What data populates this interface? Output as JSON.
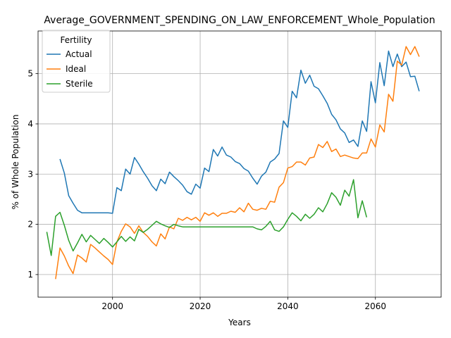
{
  "chart_data": {
    "type": "line",
    "title": "Average_GOVERNMENT_SPENDING_ON_LAW_ENFORCEMENT_Whole_Population",
    "xlabel": "Years",
    "ylabel": "% of Whole Population",
    "xlim": [
      1983,
      2075
    ],
    "ylim": [
      0.55,
      5.85
    ],
    "xticks": [
      2000,
      2020,
      2040,
      2060
    ],
    "yticks": [
      1,
      2,
      3,
      4,
      5
    ],
    "grid": true,
    "legend": {
      "title": "Fertility",
      "position": "top-left"
    },
    "series": [
      {
        "name": "Actual",
        "color": "#1f77b4",
        "x": [
          1988,
          1989,
          1990,
          1991,
          1992,
          1993,
          1994,
          1995,
          1996,
          1997,
          1998,
          1999,
          2000,
          2001,
          2002,
          2003,
          2004,
          2005,
          2006,
          2007,
          2008,
          2009,
          2010,
          2011,
          2012,
          2013,
          2014,
          2015,
          2016,
          2017,
          2018,
          2019,
          2020,
          2021,
          2022,
          2023,
          2024,
          2025,
          2026,
          2027,
          2028,
          2029,
          2030,
          2031,
          2032,
          2033,
          2034,
          2035,
          2036,
          2037,
          2038,
          2039,
          2040,
          2041,
          2042,
          2043,
          2044,
          2045,
          2046,
          2047,
          2048,
          2049,
          2050,
          2051,
          2052,
          2053,
          2054,
          2055,
          2056,
          2057,
          2058,
          2059,
          2060,
          2061,
          2062,
          2063,
          2064,
          2065,
          2066,
          2067,
          2068,
          2069,
          2070
        ],
        "y": [
          3.3,
          3.02,
          2.57,
          2.42,
          2.28,
          2.23,
          2.23,
          2.23,
          2.23,
          2.23,
          2.23,
          2.23,
          2.22,
          2.73,
          2.67,
          3.1,
          3.0,
          3.33,
          3.2,
          3.05,
          2.92,
          2.77,
          2.67,
          2.9,
          2.81,
          3.04,
          2.95,
          2.87,
          2.78,
          2.65,
          2.6,
          2.8,
          2.72,
          3.12,
          3.05,
          3.49,
          3.36,
          3.54,
          3.38,
          3.34,
          3.25,
          3.21,
          3.11,
          3.06,
          2.92,
          2.8,
          2.96,
          3.04,
          3.24,
          3.3,
          3.41,
          4.06,
          3.93,
          4.65,
          4.52,
          5.07,
          4.81,
          4.97,
          4.75,
          4.7,
          4.56,
          4.41,
          4.19,
          4.08,
          3.9,
          3.82,
          3.63,
          3.68,
          3.55,
          4.06,
          3.85,
          4.84,
          4.42,
          5.22,
          4.76,
          5.45,
          5.14,
          5.39,
          5.14,
          5.23,
          4.94,
          4.95,
          4.65
        ]
      },
      {
        "name": "Ideal",
        "color": "#ff7f0e",
        "x": [
          1987,
          1988,
          1989,
          1990,
          1991,
          1992,
          1993,
          1994,
          1995,
          1996,
          1997,
          1998,
          1999,
          2000,
          2001,
          2002,
          2003,
          2004,
          2005,
          2006,
          2007,
          2008,
          2009,
          2010,
          2011,
          2012,
          2013,
          2014,
          2015,
          2016,
          2017,
          2018,
          2019,
          2020,
          2021,
          2022,
          2023,
          2024,
          2025,
          2026,
          2027,
          2028,
          2029,
          2030,
          2031,
          2032,
          2033,
          2034,
          2035,
          2036,
          2037,
          2038,
          2039,
          2040,
          2041,
          2042,
          2043,
          2044,
          2045,
          2046,
          2047,
          2048,
          2049,
          2050,
          2051,
          2052,
          2053,
          2054,
          2055,
          2056,
          2057,
          2058,
          2059,
          2060,
          2061,
          2062,
          2063,
          2064,
          2065,
          2066,
          2067,
          2068,
          2069,
          2070
        ],
        "y": [
          0.91,
          1.53,
          1.37,
          1.17,
          1.02,
          1.39,
          1.33,
          1.25,
          1.6,
          1.53,
          1.45,
          1.37,
          1.3,
          1.2,
          1.65,
          1.86,
          2.01,
          1.95,
          1.82,
          1.97,
          1.84,
          1.76,
          1.65,
          1.57,
          1.81,
          1.71,
          1.95,
          1.91,
          2.12,
          2.08,
          2.14,
          2.09,
          2.14,
          2.06,
          2.23,
          2.18,
          2.23,
          2.16,
          2.22,
          2.22,
          2.26,
          2.24,
          2.33,
          2.25,
          2.42,
          2.3,
          2.28,
          2.32,
          2.3,
          2.46,
          2.44,
          2.74,
          2.83,
          3.12,
          3.15,
          3.24,
          3.24,
          3.18,
          3.32,
          3.34,
          3.59,
          3.53,
          3.65,
          3.45,
          3.5,
          3.35,
          3.38,
          3.35,
          3.32,
          3.31,
          3.42,
          3.42,
          3.7,
          3.54,
          3.98,
          3.84,
          4.59,
          4.45,
          5.25,
          5.17,
          5.54,
          5.38,
          5.54,
          5.34
        ]
      },
      {
        "name": "Sterile",
        "color": "#2ca02c",
        "x": [
          1985,
          1986,
          1987,
          1988,
          1989,
          1990,
          1991,
          1992,
          1993,
          1994,
          1995,
          1996,
          1997,
          1998,
          1999,
          2000,
          2001,
          2002,
          2003,
          2004,
          2005,
          2006,
          2007,
          2008,
          2009,
          2010,
          2011,
          2012,
          2013,
          2014,
          2015,
          2016,
          2017,
          2018,
          2019,
          2020,
          2021,
          2022,
          2023,
          2024,
          2025,
          2026,
          2027,
          2028,
          2029,
          2030,
          2031,
          2032,
          2033,
          2034,
          2035,
          2036,
          2037,
          2038,
          2039,
          2040,
          2041,
          2042,
          2043,
          2044,
          2045,
          2046,
          2047,
          2048,
          2049,
          2050,
          2051,
          2052,
          2053,
          2054,
          2055,
          2056,
          2057,
          2058
        ],
        "y": [
          1.85,
          1.38,
          2.16,
          2.24,
          1.98,
          1.68,
          1.47,
          1.63,
          1.8,
          1.65,
          1.78,
          1.7,
          1.62,
          1.72,
          1.64,
          1.55,
          1.65,
          1.76,
          1.66,
          1.75,
          1.67,
          1.9,
          1.84,
          1.9,
          1.98,
          2.06,
          2.01,
          1.97,
          1.94,
          2.0,
          1.97,
          1.95,
          1.95,
          1.95,
          1.95,
          1.95,
          1.95,
          1.95,
          1.95,
          1.95,
          1.95,
          1.95,
          1.95,
          1.95,
          1.95,
          1.95,
          1.95,
          1.95,
          1.91,
          1.89,
          1.96,
          2.06,
          1.89,
          1.86,
          1.95,
          2.1,
          2.23,
          2.16,
          2.07,
          2.2,
          2.12,
          2.2,
          2.33,
          2.25,
          2.41,
          2.63,
          2.54,
          2.38,
          2.68,
          2.56,
          2.89,
          2.13,
          2.47,
          2.14
        ]
      }
    ]
  }
}
